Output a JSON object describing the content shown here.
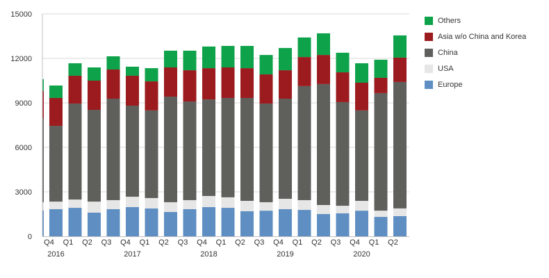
{
  "chart_data": {
    "type": "bar",
    "stacked": true,
    "title": "",
    "xlabel": "",
    "ylabel": "",
    "ylim": [
      0,
      15000
    ],
    "yticks": [
      0,
      3000,
      6000,
      9000,
      12000,
      15000
    ],
    "ytick_labels": [
      "0",
      "3000",
      "6000",
      "9000",
      "12000",
      "15000"
    ],
    "grid": true,
    "legend_position": "right",
    "categories": [
      "Q4",
      "Q1",
      "Q2",
      "Q3",
      "Q4",
      "Q1",
      "Q2",
      "Q3",
      "Q4",
      "Q1",
      "Q2",
      "Q3",
      "Q4",
      "Q1",
      "Q2",
      "Q3",
      "Q4",
      "Q1",
      "Q2"
    ],
    "year_labels": [
      {
        "index": 0,
        "label": "2016"
      },
      {
        "index": 4,
        "label": "2017"
      },
      {
        "index": 8,
        "label": "2018"
      },
      {
        "index": 12,
        "label": "2019"
      },
      {
        "index": 16,
        "label": "2020"
      }
    ],
    "series": [
      {
        "name": "Europe",
        "color": "#5f8fc2",
        "values": [
          1830,
          1920,
          1600,
          1830,
          1970,
          1880,
          1640,
          1830,
          1970,
          1920,
          1690,
          1730,
          1830,
          1780,
          1500,
          1550,
          1730,
          1310,
          1360
        ]
      },
      {
        "name": "USA",
        "color": "#e6e6e6",
        "values": [
          510,
          560,
          740,
          610,
          700,
          700,
          660,
          610,
          750,
          710,
          700,
          570,
          700,
          660,
          610,
          510,
          660,
          420,
          520
        ]
      },
      {
        "name": "China",
        "color": "#5f5f5c",
        "values": [
          5110,
          6470,
          6190,
          6840,
          6140,
          5910,
          7120,
          6650,
          6510,
          6700,
          6940,
          6650,
          6750,
          7690,
          8160,
          6990,
          6100,
          7930,
          8530
        ]
      },
      {
        "name": "Asia w/o China and Korea",
        "color": "#9b1b1e",
        "values": [
          1880,
          1880,
          1970,
          1970,
          2020,
          1960,
          1970,
          2110,
          2110,
          2060,
          2010,
          1970,
          1920,
          1960,
          1960,
          2010,
          1870,
          1030,
          1640
        ]
      },
      {
        "name": "Others",
        "color": "#0ea24a",
        "values": [
          840,
          840,
          890,
          890,
          610,
          890,
          1130,
          1320,
          1460,
          1450,
          1500,
          1310,
          1500,
          1320,
          1460,
          1320,
          1310,
          1220,
          1500
        ]
      }
    ],
    "clipped_left_bar": {
      "values": [
        1750,
        550,
        5650,
        1850,
        800
      ]
    }
  },
  "legend": {
    "items": [
      {
        "label": "Others",
        "color": "#0ea24a"
      },
      {
        "label": "Asia w/o China and Korea",
        "color": "#9b1b1e"
      },
      {
        "label": "China",
        "color": "#5f5f5c"
      },
      {
        "label": "USA",
        "color": "#e6e6e6"
      },
      {
        "label": "Europe",
        "color": "#5f8fc2"
      }
    ]
  },
  "colors": {
    "grid": "#d9d9d9",
    "axis": "#bdbdbd",
    "text": "#333333"
  }
}
